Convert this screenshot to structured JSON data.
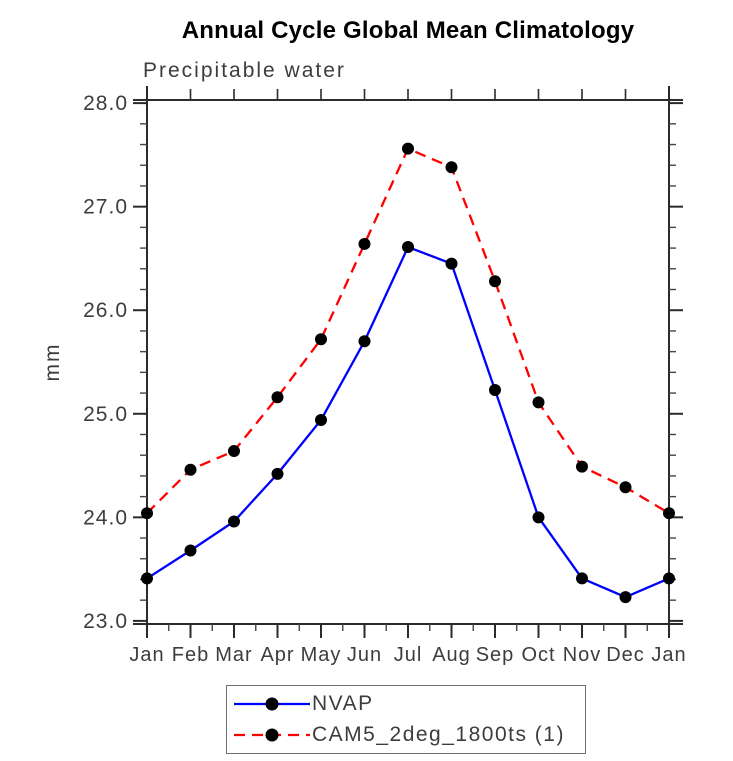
{
  "chart_data": {
    "type": "line",
    "title": "Annual Cycle Global Mean Climatology",
    "subtitle": "Precipitable water",
    "xlabel": "",
    "ylabel": "mm",
    "categories": [
      "Jan",
      "Feb",
      "Mar",
      "Apr",
      "May",
      "Jun",
      "Jul",
      "Aug",
      "Sep",
      "Oct",
      "Nov",
      "Dec",
      "Jan"
    ],
    "series": [
      {
        "name": "NVAP",
        "color": "#0000ff",
        "line_style": "solid",
        "marker": "filled-circle",
        "marker_color": "#000000",
        "values": [
          23.41,
          23.68,
          23.96,
          24.42,
          24.94,
          25.7,
          26.61,
          26.45,
          25.23,
          24.0,
          23.41,
          23.23,
          23.41
        ]
      },
      {
        "name": "CAM5_2deg_1800ts (1)",
        "color": "#ff0000",
        "line_style": "dashed",
        "marker": "filled-circle",
        "marker_color": "#000000",
        "values": [
          24.04,
          24.46,
          24.64,
          25.16,
          25.72,
          26.64,
          27.56,
          27.38,
          26.28,
          25.11,
          24.49,
          24.29,
          24.04
        ]
      }
    ],
    "ylim": [
      22.97,
      28.03
    ],
    "yticks": [
      23,
      24,
      25,
      26,
      27,
      28
    ],
    "ytick_labels": [
      "23.0",
      "24.0",
      "25.0",
      "26.0",
      "27.0",
      "28.0"
    ],
    "y_minor_step": 0.2,
    "x_minor_step": 0.5,
    "grid": false,
    "tick_direction": "out",
    "legend_position": "bottom",
    "axis_color": "#2b2b2b",
    "label_color": "#3d3d3d"
  }
}
